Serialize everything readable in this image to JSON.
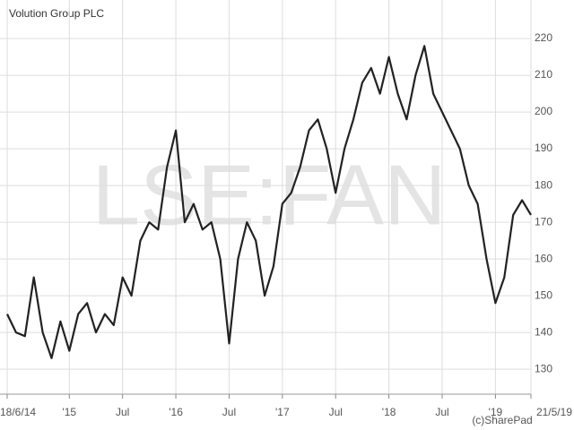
{
  "chart_data": {
    "type": "line",
    "title": "Volution Group PLC",
    "watermark": "LSE:FAN",
    "credit": "(c)SharePad",
    "x": [
      "2014-06",
      "2014-07",
      "2014-08",
      "2014-09",
      "2014-10",
      "2014-11",
      "2014-12",
      "2015-01",
      "2015-02",
      "2015-03",
      "2015-04",
      "2015-05",
      "2015-06",
      "2015-07",
      "2015-08",
      "2015-09",
      "2015-10",
      "2015-11",
      "2015-12",
      "2016-01",
      "2016-02",
      "2016-03",
      "2016-04",
      "2016-05",
      "2016-06",
      "2016-07",
      "2016-08",
      "2016-09",
      "2016-10",
      "2016-11",
      "2016-12",
      "2017-01",
      "2017-02",
      "2017-03",
      "2017-04",
      "2017-05",
      "2017-06",
      "2017-07",
      "2017-08",
      "2017-09",
      "2017-10",
      "2017-11",
      "2017-12",
      "2018-01",
      "2018-02",
      "2018-03",
      "2018-04",
      "2018-05",
      "2018-06",
      "2018-07",
      "2018-08",
      "2018-09",
      "2018-10",
      "2018-11",
      "2018-12",
      "2019-01",
      "2019-02",
      "2019-03",
      "2019-04",
      "2019-05"
    ],
    "series": [
      {
        "name": "Volution Group PLC",
        "color": "#222222",
        "values": [
          145,
          140,
          139,
          155,
          140,
          133,
          143,
          135,
          145,
          148,
          140,
          145,
          142,
          155,
          150,
          165,
          170,
          168,
          185,
          195,
          170,
          175,
          168,
          170,
          160,
          137,
          160,
          170,
          165,
          150,
          158,
          175,
          178,
          185,
          195,
          198,
          190,
          178,
          190,
          198,
          208,
          212,
          205,
          215,
          205,
          198,
          210,
          218,
          205,
          200,
          195,
          190,
          180,
          175,
          160,
          148,
          155,
          172,
          176,
          172
        ]
      }
    ],
    "xlim": [
      "2014-06",
      "2019-05"
    ],
    "xticks": [
      {
        "value": "2014-06",
        "label": "18/6/14"
      },
      {
        "value": "2015-01",
        "label": "'15"
      },
      {
        "value": "2015-07",
        "label": "Jul"
      },
      {
        "value": "2016-01",
        "label": "'16"
      },
      {
        "value": "2016-07",
        "label": "Jul"
      },
      {
        "value": "2017-01",
        "label": "'17"
      },
      {
        "value": "2017-07",
        "label": "Jul"
      },
      {
        "value": "2018-01",
        "label": "'18"
      },
      {
        "value": "2018-07",
        "label": "Jul"
      },
      {
        "value": "2019-01",
        "label": "'19"
      },
      {
        "value": "2019-05",
        "label": "21/5/19"
      }
    ],
    "ylim": [
      123.2,
      230.5
    ],
    "yticks": [
      130,
      140,
      150,
      160,
      170,
      180,
      190,
      200,
      210,
      220
    ],
    "grid": true
  }
}
